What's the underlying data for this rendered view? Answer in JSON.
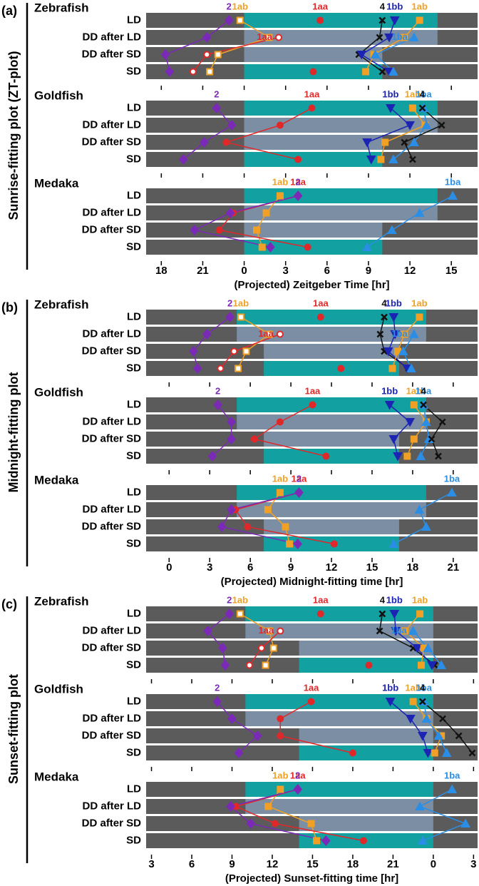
{
  "chart_data": [
    {
      "type": "phase",
      "panel": "(a)",
      "ylabel": "Sunrise-fitting plot (ZT-plot)",
      "xlabel": "(Projected) Zeitgeber Time [hr]",
      "xlim": [
        -7.1,
        16.9
      ],
      "xticks": [
        {
          "value": -6,
          "label": "18"
        },
        {
          "value": -3,
          "label": "21"
        },
        0,
        3,
        6,
        9,
        12,
        15
      ],
      "conditions": [
        "LD",
        "DD after LD",
        "DD after SD",
        "SD"
      ],
      "bands": [
        {
          "kind": "light",
          "start": 0,
          "end": 14
        },
        {
          "kind": "subjective",
          "start": 0,
          "end": 14
        },
        {
          "kind": "subjective",
          "start": 0,
          "end": 10
        },
        {
          "kind": "light",
          "start": 0,
          "end": 10
        }
      ],
      "band_colors": {
        "light": "#13a0a0",
        "subjective": "#7b8ea3",
        "dark": "#5b5b5b"
      },
      "groups": [
        {
          "name": "Zebrafish",
          "series": [
            {
              "name": "2",
              "color": "#7b2ab8",
              "marker": "diamond",
              "filled": true,
              "values": [
                -1.1,
                -2.7,
                -5.7,
                -5.4
              ]
            },
            {
              "name": "1ab",
              "color": "#f0a024",
              "marker": "square",
              "filled": false,
              "values": [
                -0.3,
                1.8,
                -1.9,
                -2.5
              ]
            },
            {
              "name": "1aa",
              "color": "#e0282a",
              "marker": "circle",
              "filled": true,
              "values": [
                5.5,
                null,
                null,
                5.0
              ]
            },
            {
              "name": "1aa",
              "color": "#e0282a",
              "marker": "circle",
              "filled": false,
              "values": [
                null,
                2.5,
                -2.7,
                -3.7
              ]
            },
            {
              "name": "4",
              "color": "#111111",
              "marker": "cross",
              "filled": true,
              "values": [
                10.0,
                9.8,
                8.3,
                10.0
              ]
            },
            {
              "name": "1bb",
              "color": "#1c24b4",
              "marker": "tri-down",
              "filled": true,
              "values": [
                10.9,
                10.5,
                8.5,
                10.5
              ]
            },
            {
              "name": "1ab",
              "color": "#f0a024",
              "marker": "square",
              "filled": true,
              "values": [
                12.7,
                11.6,
                9.4,
                8.8
              ]
            },
            {
              "name": "1ba",
              "color": "#2a8ee6",
              "marker": "tri-up",
              "filled": true,
              "values": [
                null,
                12.3,
                9.5,
                10.8
              ]
            }
          ]
        },
        {
          "name": "Goldfish",
          "series": [
            {
              "name": "2",
              "color": "#7b2ab8",
              "marker": "diamond",
              "filled": true,
              "values": [
                -2.0,
                -0.9,
                -2.9,
                -4.4
              ]
            },
            {
              "name": "1aa",
              "color": "#e0282a",
              "marker": "circle",
              "filled": true,
              "values": [
                4.9,
                2.6,
                -1.3,
                3.9
              ]
            },
            {
              "name": "1bb",
              "color": "#1c24b4",
              "marker": "tri-down",
              "filled": true,
              "values": [
                10.6,
                12.0,
                8.9,
                9.2
              ]
            },
            {
              "name": "1ab",
              "color": "#f0a024",
              "marker": "square",
              "filled": true,
              "values": [
                12.2,
                13.1,
                10.2,
                9.9
              ]
            },
            {
              "name": "1ba",
              "color": "#2a8ee6",
              "marker": "tri-up",
              "filled": true,
              "values": [
                13.0,
                13.2,
                12.3,
                10.8
              ]
            },
            {
              "name": "4",
              "color": "#111111",
              "marker": "cross",
              "filled": true,
              "values": [
                12.9,
                14.3,
                11.6,
                12.2
              ]
            }
          ]
        },
        {
          "name": "Medaka",
          "series": [
            {
              "name": "1ab",
              "color": "#f0a024",
              "marker": "square",
              "filled": true,
              "values": [
                2.6,
                1.6,
                0.9,
                1.3
              ]
            },
            {
              "name": "1aa",
              "color": "#e0282a",
              "marker": "circle",
              "filled": true,
              "values": [
                3.9,
                -0.8,
                -1.8,
                4.6
              ]
            },
            {
              "name": "2",
              "color": "#7b2ab8",
              "marker": "diamond",
              "filled": true,
              "values": [
                3.9,
                -1.0,
                -3.6,
                1.9
              ]
            },
            {
              "name": "1ba",
              "color": "#2a8ee6",
              "marker": "tri-up",
              "filled": true,
              "values": [
                15.1,
                12.7,
                10.7,
                8.9
              ]
            }
          ]
        }
      ]
    },
    {
      "type": "phase",
      "panel": "(b)",
      "ylabel": "Midnight-fitting plot",
      "xlabel": "(Projected) Midnight-fitting time [hr]",
      "xlim": [
        -1.7,
        22.8
      ],
      "xticks": [
        0,
        3,
        6,
        9,
        12,
        15,
        18,
        21
      ],
      "conditions": [
        "LD",
        "DD after LD",
        "DD after SD",
        "SD"
      ],
      "bands": [
        {
          "kind": "light",
          "start": 5,
          "end": 19
        },
        {
          "kind": "subjective",
          "start": 5,
          "end": 19
        },
        {
          "kind": "subjective",
          "start": 7,
          "end": 17
        },
        {
          "kind": "light",
          "start": 7,
          "end": 17
        }
      ],
      "band_colors": {
        "light": "#13a0a0",
        "subjective": "#7b8ea3",
        "dark": "#5b5b5b"
      },
      "groups": [
        {
          "name": "Zebrafish",
          "series": [
            {
              "name": "2",
              "color": "#7b2ab8",
              "marker": "diamond",
              "filled": true,
              "values": [
                4.5,
                2.8,
                1.8,
                2.1
              ]
            },
            {
              "name": "1ab",
              "color": "#f0a024",
              "marker": "square",
              "filled": false,
              "values": [
                5.3,
                7.4,
                5.7,
                5.1
              ]
            },
            {
              "name": "1aa",
              "color": "#e0282a",
              "marker": "circle",
              "filled": true,
              "values": [
                11.2,
                null,
                null,
                12.7
              ]
            },
            {
              "name": "1aa",
              "color": "#e0282a",
              "marker": "circle",
              "filled": false,
              "values": [
                null,
                8.2,
                4.8,
                3.8
              ]
            },
            {
              "name": "4",
              "color": "#111111",
              "marker": "cross",
              "filled": true,
              "values": [
                15.9,
                15.6,
                15.9,
                17.7
              ]
            },
            {
              "name": "1bb",
              "color": "#1c24b4",
              "marker": "tri-down",
              "filled": true,
              "values": [
                16.6,
                16.7,
                16.2,
                17.6
              ]
            },
            {
              "name": "1ab",
              "color": "#f0a024",
              "marker": "square",
              "filled": true,
              "values": [
                18.5,
                17.4,
                16.9,
                16.5
              ]
            },
            {
              "name": "1ba",
              "color": "#2a8ee6",
              "marker": "tri-up",
              "filled": true,
              "values": [
                null,
                18.1,
                17.3,
                17.9
              ]
            }
          ]
        },
        {
          "name": "Goldfish",
          "series": [
            {
              "name": "2",
              "color": "#7b2ab8",
              "marker": "diamond",
              "filled": true,
              "values": [
                3.6,
                4.6,
                4.6,
                3.2
              ]
            },
            {
              "name": "1aa",
              "color": "#e0282a",
              "marker": "circle",
              "filled": true,
              "values": [
                10.6,
                8.2,
                6.3,
                11.6
              ]
            },
            {
              "name": "1bb",
              "color": "#1c24b4",
              "marker": "tri-down",
              "filled": true,
              "values": [
                16.3,
                17.8,
                16.6,
                16.9
              ]
            },
            {
              "name": "1ab",
              "color": "#f0a024",
              "marker": "square",
              "filled": true,
              "values": [
                18.1,
                19.0,
                18.1,
                17.6
              ]
            },
            {
              "name": "1ba",
              "color": "#2a8ee6",
              "marker": "tri-up",
              "filled": true,
              "values": [
                18.8,
                19.0,
                19.2,
                18.6
              ]
            },
            {
              "name": "4",
              "color": "#111111",
              "marker": "cross",
              "filled": true,
              "values": [
                18.8,
                20.2,
                19.4,
                19.9
              ]
            }
          ]
        },
        {
          "name": "Medaka",
          "series": [
            {
              "name": "1ab",
              "color": "#f0a024",
              "marker": "square",
              "filled": true,
              "values": [
                8.2,
                7.3,
                8.6,
                8.9
              ]
            },
            {
              "name": "1aa",
              "color": "#e0282a",
              "marker": "circle",
              "filled": true,
              "values": [
                9.6,
                4.9,
                5.8,
                12.2
              ]
            },
            {
              "name": "2",
              "color": "#7b2ab8",
              "marker": "diamond",
              "filled": true,
              "values": [
                9.6,
                4.6,
                3.9,
                9.5
              ]
            },
            {
              "name": "1ba",
              "color": "#2a8ee6",
              "marker": "tri-up",
              "filled": true,
              "values": [
                20.9,
                18.5,
                19.0,
                16.6
              ]
            }
          ]
        }
      ]
    },
    {
      "type": "phase",
      "panel": "(c)",
      "ylabel": "Sunset-fitting plot",
      "xlabel": "(Projected) Sunset-fitting time [hr]",
      "xlim": [
        2.6,
        27.3
      ],
      "xticks": [
        3,
        6,
        9,
        12,
        15,
        18,
        21,
        {
          "value": 24,
          "label": "0"
        },
        {
          "value": 27,
          "label": "3"
        }
      ],
      "conditions": [
        "LD",
        "DD after LD",
        "DD after SD",
        "SD"
      ],
      "bands": [
        {
          "kind": "light",
          "start": 10,
          "end": 24
        },
        {
          "kind": "subjective",
          "start": 10,
          "end": 24
        },
        {
          "kind": "subjective",
          "start": 14,
          "end": 24
        },
        {
          "kind": "light",
          "start": 14,
          "end": 24
        }
      ],
      "band_colors": {
        "light": "#13a0a0",
        "subjective": "#7b8ea3",
        "dark": "#5b5b5b"
      },
      "groups": [
        {
          "name": "Zebrafish",
          "series": [
            {
              "name": "2",
              "color": "#7b2ab8",
              "marker": "diamond",
              "filled": true,
              "values": [
                8.8,
                7.2,
                8.3,
                8.5
              ]
            },
            {
              "name": "1ab",
              "color": "#f0a024",
              "marker": "square",
              "filled": false,
              "values": [
                9.6,
                11.8,
                12.1,
                11.5
              ]
            },
            {
              "name": "1aa",
              "color": "#e0282a",
              "marker": "circle",
              "filled": true,
              "values": [
                15.6,
                null,
                null,
                19.2
              ]
            },
            {
              "name": "1aa",
              "color": "#e0282a",
              "marker": "circle",
              "filled": false,
              "values": [
                null,
                12.6,
                11.2,
                10.3
              ]
            },
            {
              "name": "4",
              "color": "#111111",
              "marker": "cross",
              "filled": true,
              "values": [
                20.2,
                20.0,
                22.5,
                24.1
              ]
            },
            {
              "name": "1bb",
              "color": "#1c24b4",
              "marker": "tri-down",
              "filled": true,
              "values": [
                21.1,
                21.2,
                22.8,
                23.9
              ]
            },
            {
              "name": "1ab",
              "color": "#f0a024",
              "marker": "square",
              "filled": true,
              "values": [
                23.0,
                21.9,
                23.3,
                23.1
              ]
            },
            {
              "name": "1ba",
              "color": "#2a8ee6",
              "marker": "tri-up",
              "filled": true,
              "values": [
                null,
                22.5,
                23.6,
                24.6
              ]
            }
          ]
        },
        {
          "name": "Goldfish",
          "series": [
            {
              "name": "2",
              "color": "#7b2ab8",
              "marker": "diamond",
              "filled": true,
              "values": [
                7.9,
                9.0,
                10.9,
                9.5
              ]
            },
            {
              "name": "1aa",
              "color": "#e0282a",
              "marker": "circle",
              "filled": true,
              "values": [
                14.9,
                12.6,
                12.6,
                18.0
              ]
            },
            {
              "name": "1bb",
              "color": "#1c24b4",
              "marker": "tri-down",
              "filled": true,
              "values": [
                20.8,
                22.3,
                23.2,
                23.6
              ]
            },
            {
              "name": "1ab",
              "color": "#f0a024",
              "marker": "square",
              "filled": true,
              "values": [
                22.5,
                23.5,
                24.6,
                24.1
              ]
            },
            {
              "name": "1ba",
              "color": "#2a8ee6",
              "marker": "tri-up",
              "filled": true,
              "values": [
                23.3,
                23.5,
                24.4,
                25.0
              ]
            },
            {
              "name": "4",
              "color": "#111111",
              "marker": "cross",
              "filled": true,
              "values": [
                23.2,
                24.7,
                25.9,
                26.9
              ]
            }
          ]
        },
        {
          "name": "Medaka",
          "series": [
            {
              "name": "1ab",
              "color": "#f0a024",
              "marker": "square",
              "filled": true,
              "values": [
                12.6,
                11.7,
                14.9,
                15.3
              ]
            },
            {
              "name": "1aa",
              "color": "#e0282a",
              "marker": "circle",
              "filled": true,
              "values": [
                13.9,
                9.3,
                12.2,
                18.8
              ]
            },
            {
              "name": "2",
              "color": "#7b2ab8",
              "marker": "diamond",
              "filled": true,
              "values": [
                13.9,
                8.9,
                10.4,
                16.0
              ]
            },
            {
              "name": "1ba",
              "color": "#2a8ee6",
              "marker": "tri-up",
              "filled": true,
              "values": [
                25.4,
                23.0,
                26.4,
                23.2
              ]
            }
          ]
        }
      ]
    }
  ]
}
